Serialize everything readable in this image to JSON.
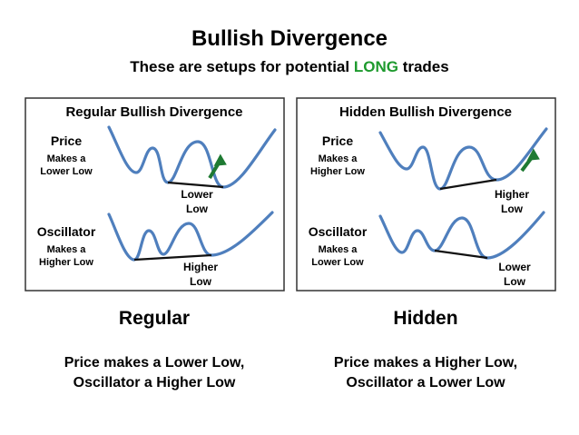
{
  "title": "Bullish Divergence",
  "subtitle": {
    "before": "These are setups for potential",
    "highlight": "LONG",
    "after": "trades"
  },
  "panels": [
    {
      "title": "Regular Bullish Divergence",
      "price_label": [
        "Price",
        "Makes a",
        "Lower Low"
      ],
      "price_note": [
        "Lower",
        "Low"
      ],
      "oscillator_label": [
        "Oscillator",
        "Makes a",
        "Higher Low"
      ],
      "oscillator_note": [
        "Higher",
        "Low"
      ],
      "caption": "Regular",
      "description": [
        "Price makes a Lower Low,",
        "Oscillator a Higher Low"
      ]
    },
    {
      "title": "Hidden Bullish Divergence",
      "price_label": [
        "Price",
        "Makes a",
        "Higher Low"
      ],
      "price_note": [
        "Higher",
        "Low"
      ],
      "oscillator_label": [
        "Oscillator",
        "Makes a",
        "Lower Low"
      ],
      "oscillator_note": [
        "Lower",
        "Low"
      ],
      "caption": "Hidden",
      "description": [
        "Price makes a Higher Low,",
        "Oscillator a Lower Low"
      ]
    }
  ]
}
